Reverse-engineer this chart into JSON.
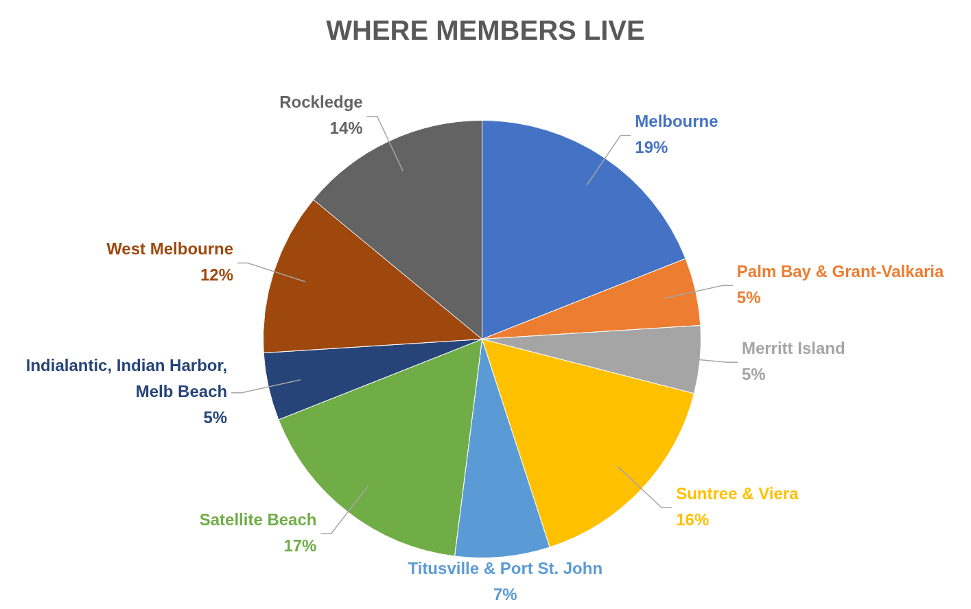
{
  "chart_data": {
    "type": "pie",
    "title": "WHERE MEMBERS LIVE",
    "categories": [
      "Melbourne",
      "Palm Bay & Grant-Valkaria",
      "Merritt Island",
      "Suntree & Viera",
      "Titusville & Port St. John",
      "Satellite Beach",
      "Indialantic, Indian Harbor, Melb Beach",
      "West Melbourne",
      "Rockledge"
    ],
    "values": [
      19,
      5,
      5,
      16,
      7,
      17,
      5,
      12,
      14
    ],
    "colors": [
      "#4472c4",
      "#ed7d31",
      "#a5a5a5",
      "#ffc000",
      "#5b9bd5",
      "#70ad47",
      "#264478",
      "#9e480e",
      "#636363"
    ],
    "value_labels": [
      "19%",
      "5%",
      "5%",
      "16%",
      "7%",
      "17%",
      "5%",
      "12%",
      "14%"
    ],
    "legend": false
  }
}
